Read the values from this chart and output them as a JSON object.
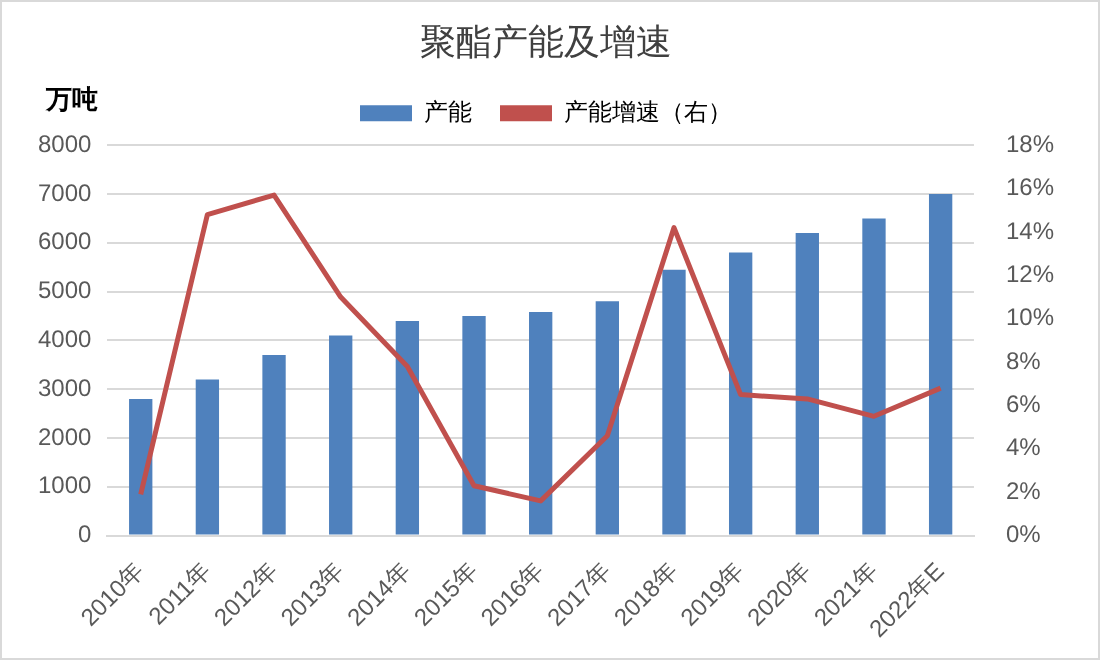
{
  "chart_data": {
    "type": "bar",
    "title": "聚酯产能及增速",
    "ylabel": "万吨",
    "categories": [
      "2010年",
      "2011年",
      "2012年",
      "2013年",
      "2014年",
      "2015年",
      "2016年",
      "2017年",
      "2018年",
      "2019年",
      "2020年",
      "2021年",
      "2022年E"
    ],
    "series": [
      {
        "name": "产能",
        "color": "#4f81bd",
        "values": [
          2800,
          3200,
          3700,
          4100,
          4400,
          4500,
          4580,
          4800,
          5450,
          5800,
          6200,
          6500,
          7000
        ]
      },
      {
        "name": "产能增速（右）",
        "type": "line",
        "axis": "y2",
        "color": "#c0504d",
        "values": [
          1.9,
          14.8,
          15.7,
          11.0,
          7.8,
          2.3,
          1.6,
          4.6,
          14.2,
          6.5,
          6.3,
          5.5,
          6.8
        ]
      }
    ],
    "ylim": [
      0,
      8000
    ],
    "yticks": [
      0,
      1000,
      2000,
      3000,
      4000,
      5000,
      6000,
      7000,
      8000
    ],
    "y2lim": [
      0,
      18
    ],
    "y2ticks": [
      {
        "value": 0,
        "label": "0%"
      },
      {
        "value": 2,
        "label": "2%"
      },
      {
        "value": 4,
        "label": "4%"
      },
      {
        "value": 6,
        "label": "6%"
      },
      {
        "value": 8,
        "label": "8%"
      },
      {
        "value": 10,
        "label": "10%"
      },
      {
        "value": 12,
        "label": "12%"
      },
      {
        "value": 14,
        "label": "14%"
      },
      {
        "value": 16,
        "label": "16%"
      },
      {
        "value": 18,
        "label": "18%"
      }
    ],
    "grid": "y",
    "legend": "top",
    "marker": "none"
  }
}
